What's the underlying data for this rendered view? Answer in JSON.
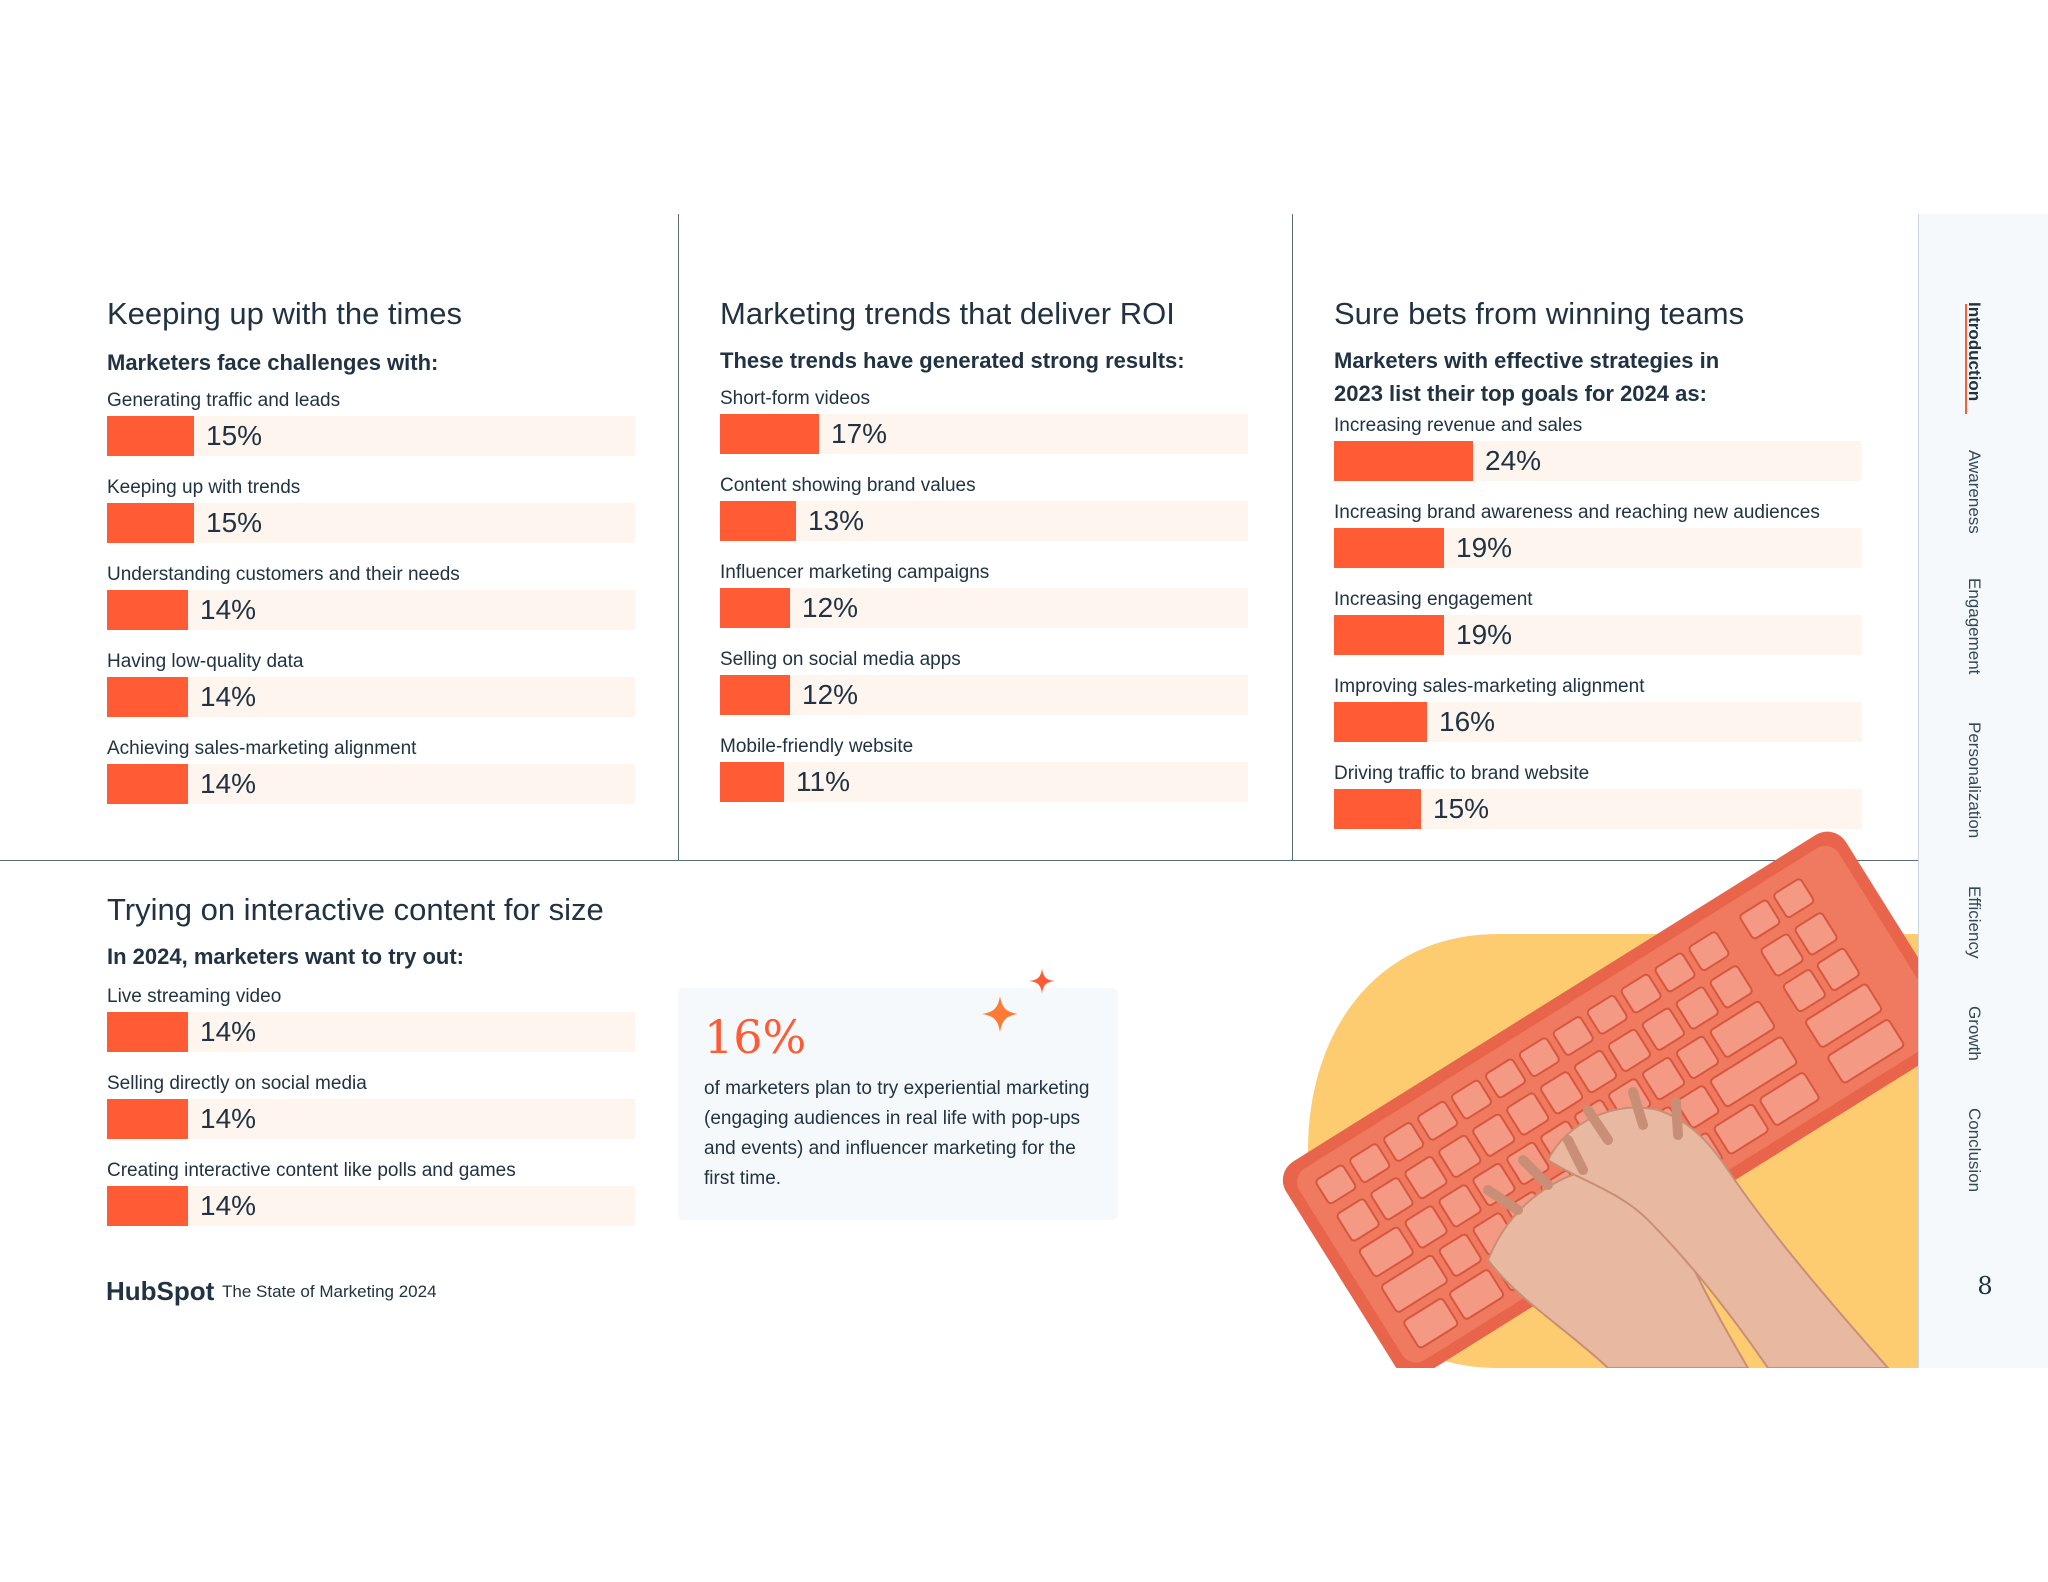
{
  "colors": {
    "accent": "#ff5c35",
    "track": "#fef5ee",
    "text": "#213343",
    "yellow": "#fecc70",
    "keyboard": "#f07a5f"
  },
  "sections": {
    "times": {
      "title": "Keeping up with the times",
      "subtitle": "Marketers face challenges with:",
      "items": [
        {
          "label": "Generating traffic and leads",
          "value": "15%",
          "pct": 15
        },
        {
          "label": "Keeping up with trends",
          "value": "15%",
          "pct": 15
        },
        {
          "label": "Understanding customers and their needs",
          "value": "14%",
          "pct": 14
        },
        {
          "label": "Having low-quality data",
          "value": "14%",
          "pct": 14
        },
        {
          "label": "Achieving sales-marketing alignment",
          "value": "14%",
          "pct": 14
        }
      ]
    },
    "roi": {
      "title": "Marketing trends that deliver ROI",
      "subtitle": "These trends have generated strong results:",
      "items": [
        {
          "label": "Short-form videos",
          "value": "17%",
          "pct": 17
        },
        {
          "label": "Content showing brand values",
          "value": "13%",
          "pct": 13
        },
        {
          "label": "Influencer marketing campaigns",
          "value": "12%",
          "pct": 12
        },
        {
          "label": "Selling on social media apps",
          "value": "12%",
          "pct": 12
        },
        {
          "label": "Mobile-friendly website",
          "value": "11%",
          "pct": 11
        }
      ]
    },
    "bets": {
      "title": "Sure bets from winning teams",
      "subtitle_line1": "Marketers with effective strategies in",
      "subtitle_line2": "2023 list their top goals for 2024 as:",
      "items": [
        {
          "label": "Increasing revenue and sales",
          "value": "24%",
          "pct": 24
        },
        {
          "label": "Increasing brand awareness and reaching new audiences",
          "value": "19%",
          "pct": 19
        },
        {
          "label": "Increasing engagement",
          "value": "19%",
          "pct": 19
        },
        {
          "label": "Improving sales-marketing alignment",
          "value": "16%",
          "pct": 16
        },
        {
          "label": "Driving traffic to brand website",
          "value": "15%",
          "pct": 15
        }
      ]
    },
    "interactive": {
      "title": "Trying on interactive content for size",
      "subtitle": "In 2024, marketers want to try out:",
      "items": [
        {
          "label": "Live streaming video",
          "value": "14%",
          "pct": 14
        },
        {
          "label": "Selling directly on social media",
          "value": "14%",
          "pct": 14
        },
        {
          "label": "Creating interactive content like polls and games",
          "value": "14%",
          "pct": 14
        }
      ]
    }
  },
  "callout": {
    "big": "16%",
    "text": "of marketers plan to try experiential marketing (engaging audiences in real life with pop-ups and events) and influencer marketing for the first time.",
    "icon": "sparkle-icon"
  },
  "footer": {
    "logo": "HubSpot",
    "title": "The State of Marketing 2024"
  },
  "nav": {
    "items": [
      "Introduction",
      "Awareness",
      "Engagement",
      "Personalization",
      "Efficiency",
      "Growth",
      "Conclusion"
    ],
    "active": "Introduction",
    "page_number": "8"
  }
}
